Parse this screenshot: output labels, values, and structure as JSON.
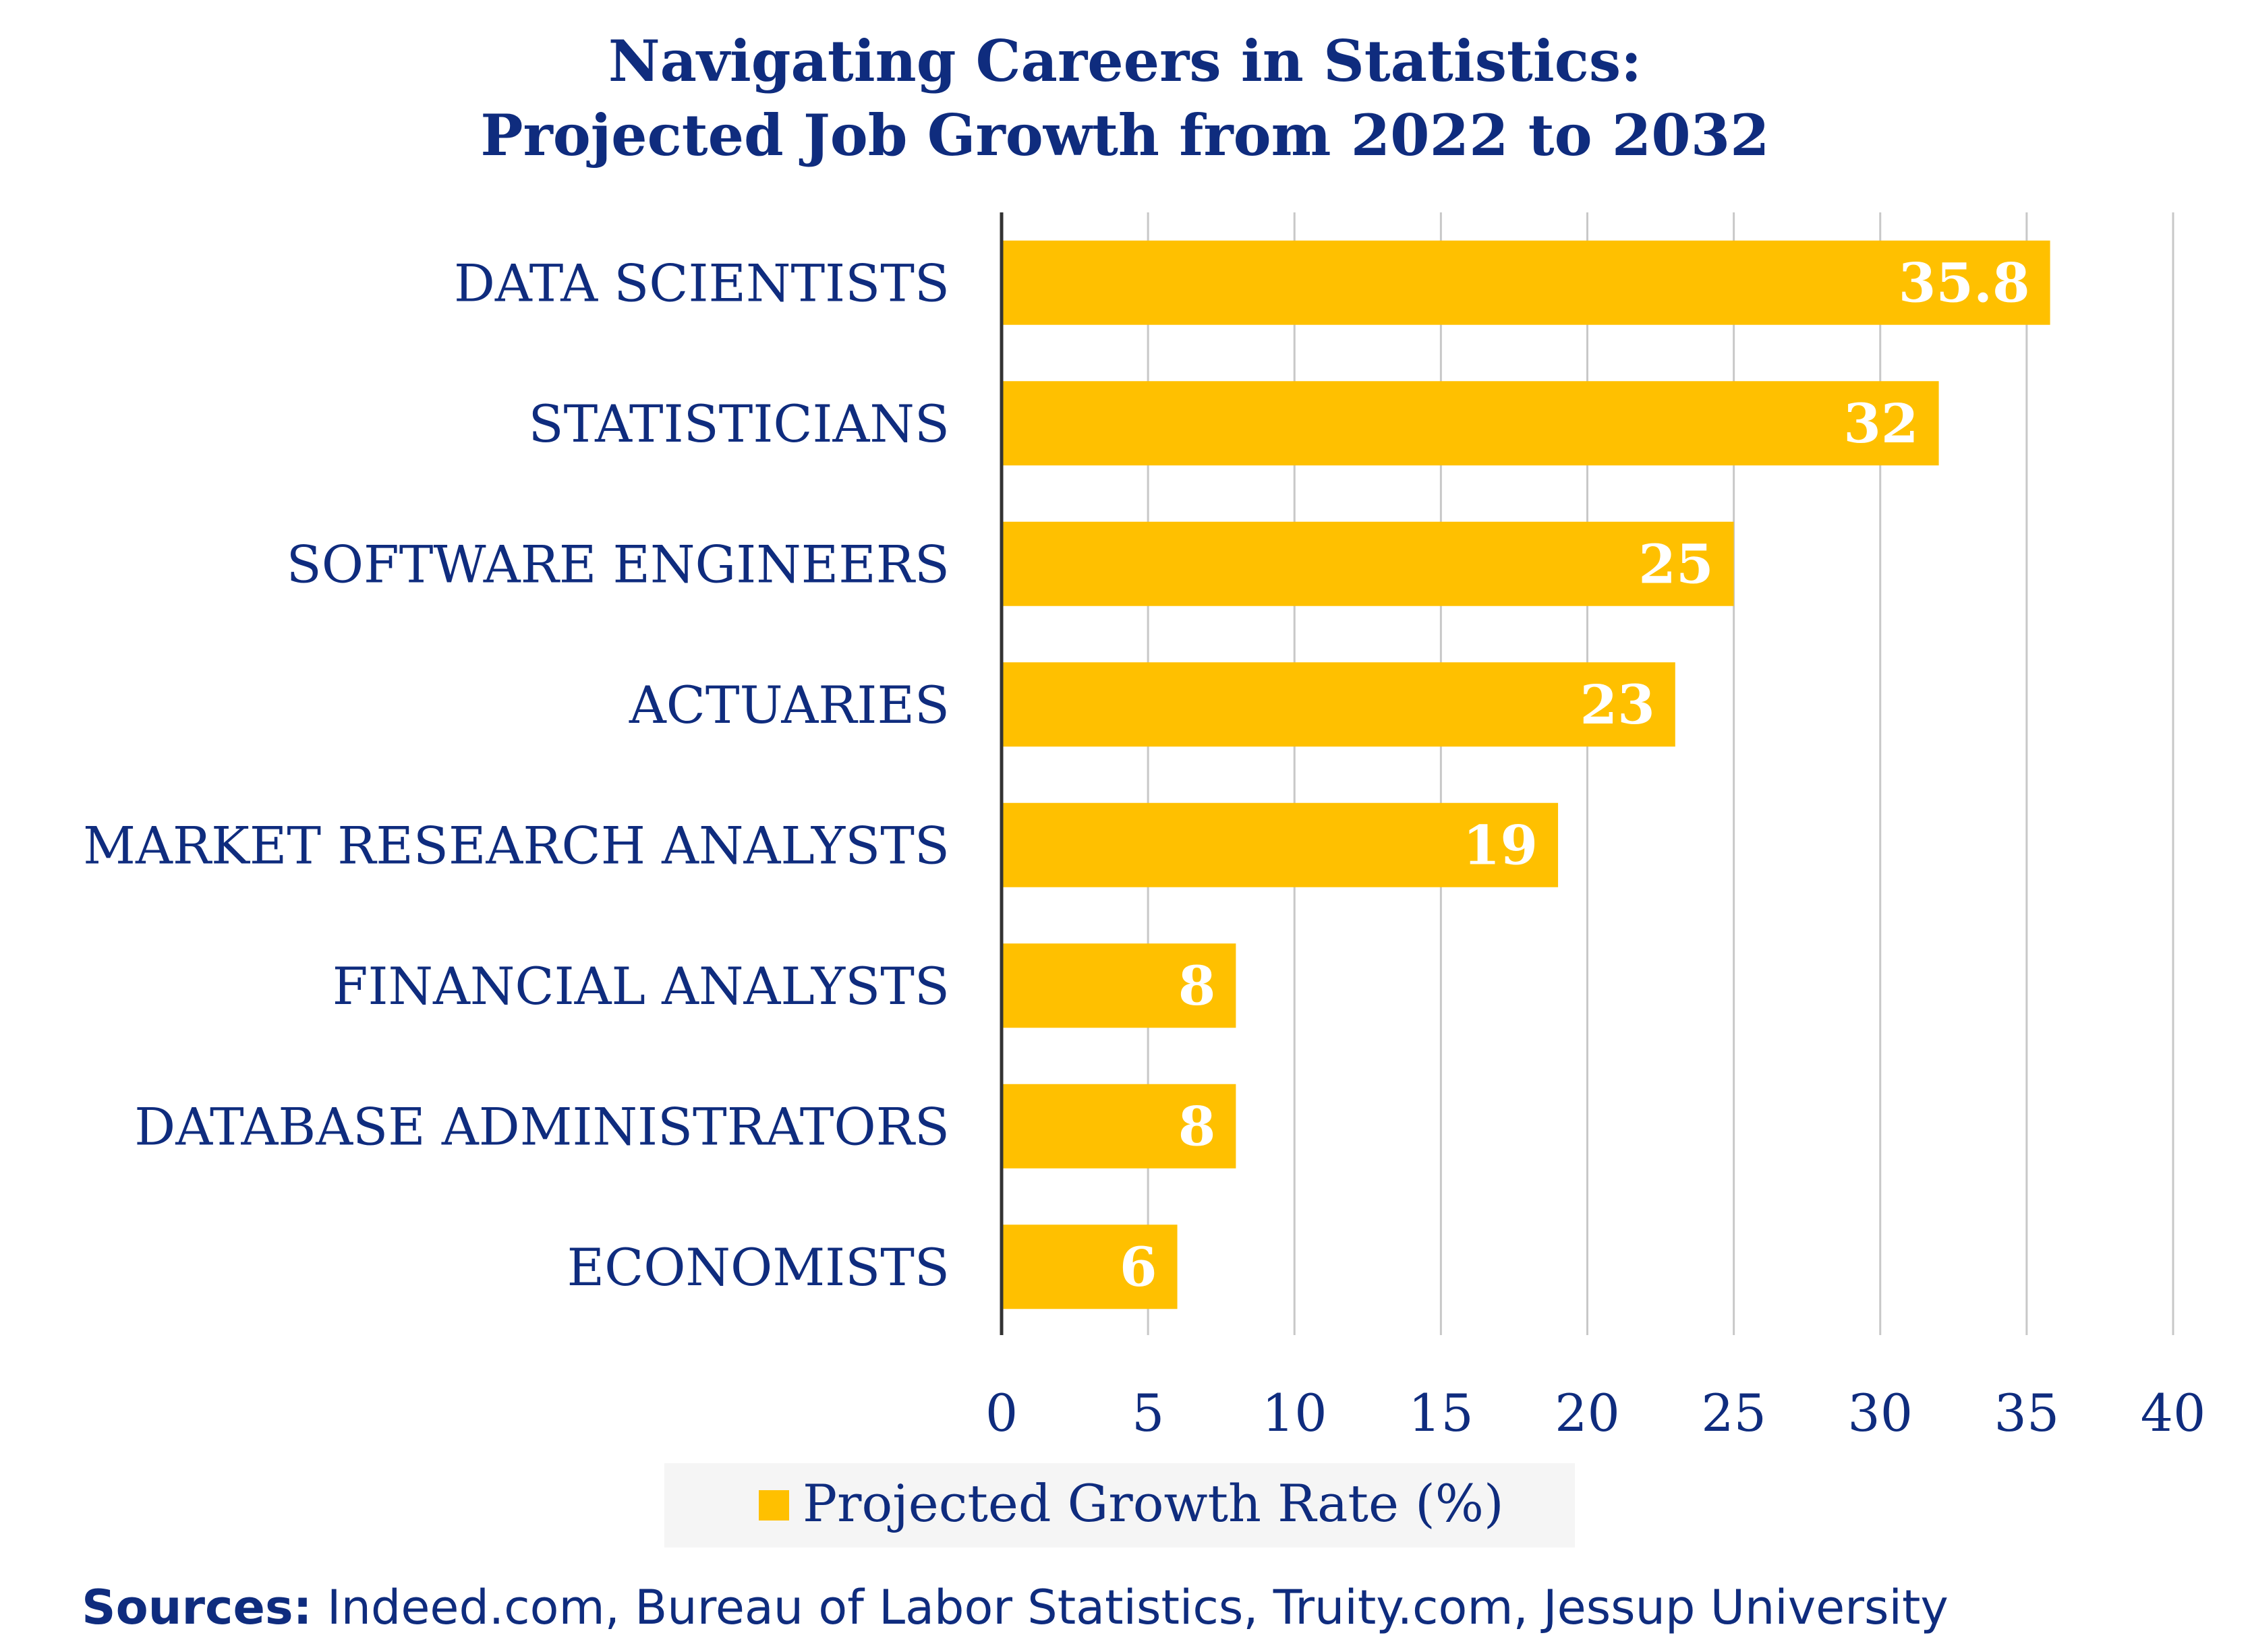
{
  "colors": {
    "title": "#0f2c7e",
    "bar": "#ffc000",
    "grid": "#c8c8c8",
    "axis": "#333333",
    "value_label": "#ffffff",
    "legend_bg": "#f5f5f5"
  },
  "chart_data": {
    "type": "bar",
    "orientation": "horizontal",
    "title_lines": [
      "Navigating Careers in Statistics:",
      "Projected Job Growth from 2022 to 2032"
    ],
    "categories": [
      "DATA SCIENTISTS",
      "STATISTICIANS",
      "SOFTWARE ENGINEERS",
      "ACTUARIES",
      "MARKET RESEARCH ANALYSTS",
      "FINANCIAL ANALYSTS",
      "DATABASE ADMINISTRATORS",
      "ECONOMISTS"
    ],
    "series": [
      {
        "name": "Projected Growth Rate (%)",
        "values": [
          35.8,
          32,
          25,
          23,
          19,
          8,
          8,
          6
        ],
        "labels": [
          "35.8",
          "32",
          "25",
          "23",
          "19",
          "8",
          "8",
          "6"
        ]
      }
    ],
    "xlim": [
      0,
      40
    ],
    "x_ticks": [
      0,
      5,
      10,
      15,
      20,
      25,
      30,
      35,
      40
    ],
    "grid": true,
    "legend_position": "bottom"
  },
  "footer": {
    "sources_label": "Sources:",
    "sources_text": " Indeed.com, Bureau of Labor Statistics, Truity.com, Jessup University"
  }
}
